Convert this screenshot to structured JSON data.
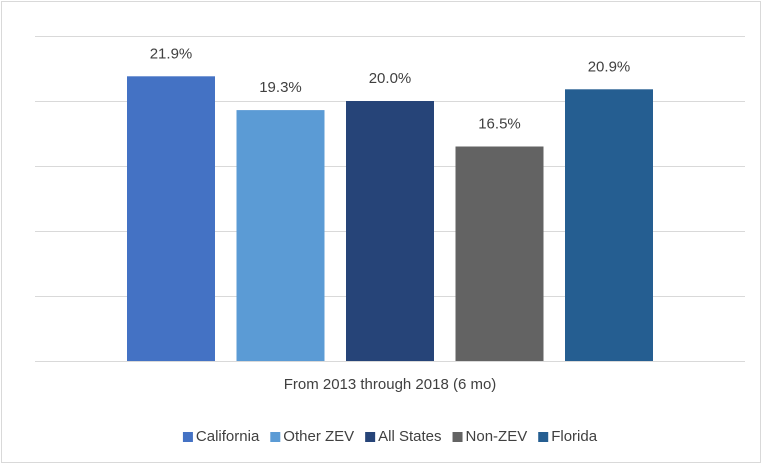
{
  "chart_data": {
    "type": "bar",
    "categories": [
      "From 2013 through 2018 (6 mo)"
    ],
    "series": [
      {
        "name": "California",
        "color": "#4472c4",
        "values": [
          21.9
        ],
        "value_labels": [
          "21.9%"
        ]
      },
      {
        "name": "Other ZEV",
        "color": "#5b9bd5",
        "values": [
          19.3
        ],
        "value_labels": [
          "19.3%"
        ]
      },
      {
        "name": "All States",
        "color": "#264478",
        "values": [
          20.0
        ],
        "value_labels": [
          "20.0%"
        ]
      },
      {
        "name": "Non-ZEV",
        "color": "#636363",
        "values": [
          16.5
        ],
        "value_labels": [
          "16.5%"
        ]
      },
      {
        "name": "Florida",
        "color": "#255e91",
        "values": [
          20.9
        ],
        "value_labels": [
          "20.9%"
        ]
      }
    ],
    "ylim": [
      0,
      25
    ],
    "yticks": [
      0,
      5,
      10,
      15,
      20,
      25
    ],
    "grid": true,
    "legend": "bottom"
  }
}
